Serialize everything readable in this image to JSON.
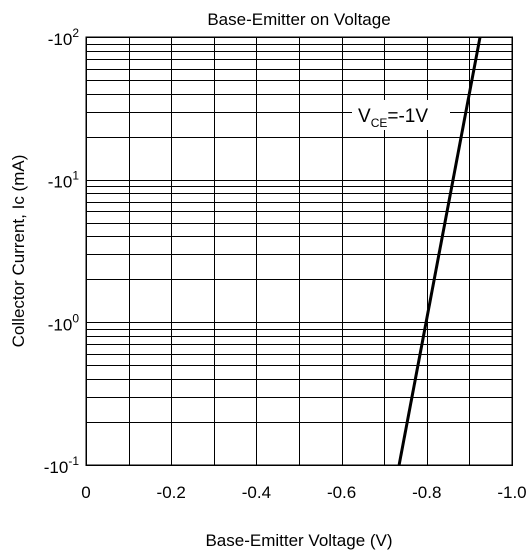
{
  "chart_data": {
    "type": "line",
    "title": "Base-Emitter on Voltage",
    "xlabel": "Base-Emitter Voltage (V)",
    "ylabel": "Collector Current, Ic (mA)",
    "x_scale": "linear",
    "y_scale": "log",
    "xlim": [
      0,
      -1.0
    ],
    "ylim": [
      -0.1,
      -100
    ],
    "x_ticks": [
      {
        "value": 0,
        "label": "0"
      },
      {
        "value": -0.2,
        "label": "-0.2"
      },
      {
        "value": -0.4,
        "label": "-0.4"
      },
      {
        "value": -0.6,
        "label": "-0.6"
      },
      {
        "value": -0.8,
        "label": "-0.8"
      },
      {
        "value": -1.0,
        "label": "-1.0"
      }
    ],
    "y_ticks": [
      {
        "value": -0.1,
        "base": "-10",
        "exp": "-1"
      },
      {
        "value": -1,
        "base": "-10",
        "exp": "0"
      },
      {
        "value": -10,
        "base": "-10",
        "exp": "1"
      },
      {
        "value": -100,
        "base": "-10",
        "exp": "2"
      }
    ],
    "grid": true,
    "series": [
      {
        "points": [
          {
            "x": -0.735,
            "y": -0.1
          },
          {
            "x": -0.925,
            "y": -100
          }
        ]
      }
    ],
    "annotation": {
      "main": "V",
      "sub": "CE",
      "rest": "=-1V"
    }
  }
}
